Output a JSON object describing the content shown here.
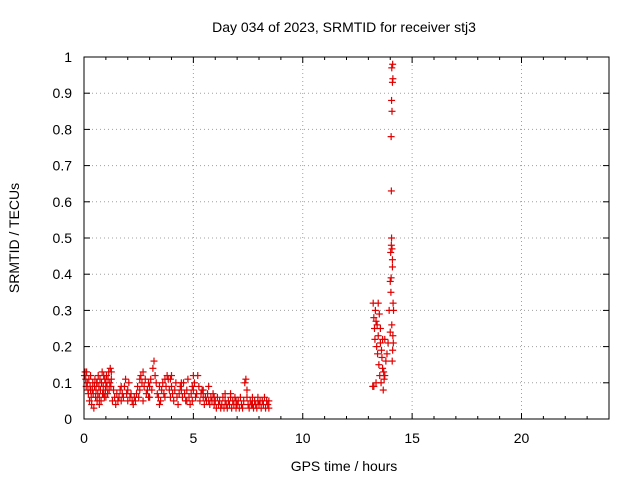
{
  "chart_data": {
    "type": "scatter",
    "title": "Day 034 of 2023, SRMTID for receiver stj3",
    "xlabel": "GPS time / hours",
    "ylabel": "SRMTID / TECUs",
    "xlim": [
      0,
      24
    ],
    "ylim": [
      0,
      1
    ],
    "xticks": [
      0,
      5,
      10,
      15,
      20
    ],
    "yticks": [
      0,
      0.1,
      0.2,
      0.3,
      0.4,
      0.5,
      0.6,
      0.7,
      0.8,
      0.9,
      1
    ],
    "grid": true,
    "marker": "+",
    "color": "#e00000",
    "series": [
      {
        "name": "SRMTID",
        "points": [
          [
            0.02,
            0.12
          ],
          [
            0.05,
            0.13
          ],
          [
            0.08,
            0.11
          ],
          [
            0.1,
            0.09
          ],
          [
            0.12,
            0.13
          ],
          [
            0.15,
            0.1
          ],
          [
            0.18,
            0.08
          ],
          [
            0.2,
            0.07
          ],
          [
            0.22,
            0.11
          ],
          [
            0.25,
            0.05
          ],
          [
            0.28,
            0.09
          ],
          [
            0.3,
            0.12
          ],
          [
            0.33,
            0.06
          ],
          [
            0.35,
            0.04
          ],
          [
            0.38,
            0.08
          ],
          [
            0.4,
            0.1
          ],
          [
            0.42,
            0.07
          ],
          [
            0.45,
            0.03
          ],
          [
            0.48,
            0.09
          ],
          [
            0.5,
            0.11
          ],
          [
            0.53,
            0.06
          ],
          [
            0.55,
            0.08
          ],
          [
            0.58,
            0.1
          ],
          [
            0.6,
            0.05
          ],
          [
            0.63,
            0.07
          ],
          [
            0.65,
            0.12
          ],
          [
            0.68,
            0.09
          ],
          [
            0.7,
            0.06
          ],
          [
            0.73,
            0.11
          ],
          [
            0.75,
            0.08
          ],
          [
            0.78,
            0.05
          ],
          [
            0.8,
            0.1
          ],
          [
            0.83,
            0.13
          ],
          [
            0.85,
            0.07
          ],
          [
            0.88,
            0.09
          ],
          [
            0.9,
            0.12
          ],
          [
            0.93,
            0.06
          ],
          [
            0.95,
            0.11
          ],
          [
            0.98,
            0.08
          ],
          [
            1.0,
            0.1
          ],
          [
            1.03,
            0.12
          ],
          [
            1.05,
            0.09
          ],
          [
            1.08,
            0.07
          ],
          [
            1.1,
            0.11
          ],
          [
            1.13,
            0.13
          ],
          [
            1.15,
            0.08
          ],
          [
            1.18,
            0.1
          ],
          [
            1.2,
            0.14
          ],
          [
            1.23,
            0.09
          ],
          [
            1.25,
            0.11
          ],
          [
            1.3,
            0.05
          ],
          [
            1.35,
            0.08
          ],
          [
            1.4,
            0.06
          ],
          [
            1.45,
            0.04
          ],
          [
            1.5,
            0.07
          ],
          [
            1.55,
            0.05
          ],
          [
            1.6,
            0.06
          ],
          [
            1.65,
            0.08
          ],
          [
            1.7,
            0.05
          ],
          [
            1.75,
            0.07
          ],
          [
            1.8,
            0.06
          ],
          [
            1.85,
            0.09
          ],
          [
            1.9,
            0.11
          ],
          [
            1.95,
            0.07
          ],
          [
            2.0,
            0.08
          ],
          [
            2.05,
            0.1
          ],
          [
            2.1,
            0.06
          ],
          [
            2.15,
            0.07
          ],
          [
            2.2,
            0.05
          ],
          [
            2.25,
            0.04
          ],
          [
            2.3,
            0.06
          ],
          [
            2.35,
            0.05
          ],
          [
            2.4,
            0.07
          ],
          [
            2.45,
            0.09
          ],
          [
            2.5,
            0.06
          ],
          [
            2.55,
            0.08
          ],
          [
            2.6,
            0.12
          ],
          [
            2.65,
            0.1
          ],
          [
            2.7,
            0.13
          ],
          [
            2.75,
            0.09
          ],
          [
            2.8,
            0.11
          ],
          [
            2.85,
            0.07
          ],
          [
            2.9,
            0.08
          ],
          [
            2.95,
            0.06
          ],
          [
            3.0,
            0.09
          ],
          [
            3.05,
            0.11
          ],
          [
            3.1,
            0.08
          ],
          [
            3.15,
            0.14
          ],
          [
            3.2,
            0.16
          ],
          [
            3.25,
            0.12
          ],
          [
            3.3,
            0.1
          ],
          [
            3.35,
            0.07
          ],
          [
            3.4,
            0.06
          ],
          [
            3.45,
            0.04
          ],
          [
            3.5,
            0.05
          ],
          [
            3.55,
            0.08
          ],
          [
            3.6,
            0.1
          ],
          [
            3.65,
            0.07
          ],
          [
            3.7,
            0.06
          ],
          [
            3.75,
            0.09
          ],
          [
            3.8,
            0.12
          ],
          [
            3.85,
            0.11
          ],
          [
            3.9,
            0.08
          ],
          [
            3.95,
            0.06
          ],
          [
            4.0,
            0.09
          ],
          [
            4.05,
            0.07
          ],
          [
            4.1,
            0.05
          ],
          [
            4.15,
            0.08
          ],
          [
            4.2,
            0.1
          ],
          [
            4.25,
            0.06
          ],
          [
            4.3,
            0.04
          ],
          [
            4.35,
            0.07
          ],
          [
            4.4,
            0.09
          ],
          [
            4.45,
            0.08
          ],
          [
            4.5,
            0.06
          ],
          [
            4.55,
            0.1
          ],
          [
            4.6,
            0.07
          ],
          [
            4.65,
            0.05
          ],
          [
            4.7,
            0.08
          ],
          [
            4.75,
            0.11
          ],
          [
            4.8,
            0.06
          ],
          [
            4.85,
            0.04
          ],
          [
            4.9,
            0.07
          ],
          [
            4.95,
            0.05
          ],
          [
            5.0,
            0.08
          ],
          [
            5.05,
            0.1
          ],
          [
            5.1,
            0.06
          ],
          [
            5.15,
            0.07
          ],
          [
            5.2,
            0.12
          ],
          [
            5.25,
            0.09
          ],
          [
            5.3,
            0.05
          ],
          [
            5.35,
            0.07
          ],
          [
            5.4,
            0.08
          ],
          [
            5.45,
            0.06
          ],
          [
            5.5,
            0.04
          ],
          [
            5.55,
            0.06
          ],
          [
            5.6,
            0.05
          ],
          [
            5.65,
            0.07
          ],
          [
            5.7,
            0.05
          ],
          [
            5.75,
            0.04
          ],
          [
            5.8,
            0.06
          ],
          [
            5.85,
            0.05
          ],
          [
            5.9,
            0.07
          ],
          [
            5.95,
            0.04
          ],
          [
            6.0,
            0.05
          ],
          [
            6.05,
            0.03
          ],
          [
            6.1,
            0.06
          ],
          [
            6.15,
            0.04
          ],
          [
            6.2,
            0.05
          ],
          [
            6.25,
            0.03
          ],
          [
            6.3,
            0.04
          ],
          [
            6.35,
            0.06
          ],
          [
            6.4,
            0.03
          ],
          [
            6.45,
            0.05
          ],
          [
            6.5,
            0.04
          ],
          [
            6.55,
            0.03
          ],
          [
            6.6,
            0.05
          ],
          [
            6.65,
            0.04
          ],
          [
            6.7,
            0.07
          ],
          [
            6.75,
            0.03
          ],
          [
            6.8,
            0.05
          ],
          [
            6.85,
            0.04
          ],
          [
            6.9,
            0.06
          ],
          [
            6.95,
            0.03
          ],
          [
            7.0,
            0.04
          ],
          [
            7.05,
            0.05
          ],
          [
            7.1,
            0.03
          ],
          [
            7.15,
            0.06
          ],
          [
            7.2,
            0.04
          ],
          [
            7.25,
            0.03
          ],
          [
            7.3,
            0.05
          ],
          [
            7.35,
            0.1
          ],
          [
            7.4,
            0.11
          ],
          [
            7.45,
            0.06
          ],
          [
            7.5,
            0.04
          ],
          [
            7.55,
            0.03
          ],
          [
            7.6,
            0.05
          ],
          [
            7.65,
            0.04
          ],
          [
            7.7,
            0.06
          ],
          [
            7.75,
            0.03
          ],
          [
            7.8,
            0.05
          ],
          [
            7.85,
            0.04
          ],
          [
            7.9,
            0.03
          ],
          [
            7.95,
            0.06
          ],
          [
            8.0,
            0.04
          ],
          [
            8.05,
            0.05
          ],
          [
            8.1,
            0.03
          ],
          [
            8.15,
            0.05
          ],
          [
            8.2,
            0.04
          ],
          [
            8.25,
            0.06
          ],
          [
            8.3,
            0.03
          ],
          [
            8.35,
            0.05
          ],
          [
            8.4,
            0.04
          ],
          [
            8.45,
            0.03
          ],
          [
            0.3,
            0.08
          ],
          [
            0.6,
            0.1
          ],
          [
            0.9,
            0.07
          ],
          [
            1.25,
            0.13
          ],
          [
            2.55,
            0.11
          ],
          [
            2.95,
            0.1
          ],
          [
            3.45,
            0.09
          ],
          [
            3.95,
            0.11
          ],
          [
            4.45,
            0.1
          ],
          [
            4.95,
            0.09
          ],
          [
            5.45,
            0.08
          ],
          [
            5.95,
            0.06
          ],
          [
            6.45,
            0.07
          ],
          [
            6.95,
            0.05
          ],
          [
            7.45,
            0.08
          ],
          [
            7.95,
            0.05
          ],
          [
            8.45,
            0.05
          ],
          [
            0.7,
            0.04
          ],
          [
            1.7,
            0.09
          ],
          [
            2.7,
            0.05
          ],
          [
            3.7,
            0.11
          ],
          [
            4.7,
            0.05
          ],
          [
            5.7,
            0.09
          ],
          [
            6.7,
            0.06
          ],
          [
            7.7,
            0.04
          ],
          [
            1.0,
            0.06
          ],
          [
            2.0,
            0.05
          ],
          [
            3.0,
            0.06
          ],
          [
            4.0,
            0.12
          ],
          [
            5.0,
            0.12
          ],
          [
            13.2,
            0.09
          ],
          [
            13.22,
            0.32
          ],
          [
            13.25,
            0.28
          ],
          [
            13.28,
            0.25
          ],
          [
            13.3,
            0.22
          ],
          [
            13.32,
            0.3
          ],
          [
            13.35,
            0.27
          ],
          [
            13.38,
            0.2
          ],
          [
            13.4,
            0.26
          ],
          [
            13.42,
            0.18
          ],
          [
            13.45,
            0.23
          ],
          [
            13.48,
            0.15
          ],
          [
            13.5,
            0.29
          ],
          [
            13.52,
            0.12
          ],
          [
            13.55,
            0.21
          ],
          [
            13.58,
            0.1
          ],
          [
            13.6,
            0.19
          ],
          [
            13.62,
            0.17
          ],
          [
            13.65,
            0.14
          ],
          [
            13.68,
            0.08
          ],
          [
            13.7,
            0.13
          ],
          [
            13.72,
            0.11
          ],
          [
            13.75,
            0.22
          ],
          [
            13.8,
            0.16
          ],
          [
            13.85,
            0.18
          ],
          [
            13.9,
            0.21
          ],
          [
            13.95,
            0.3
          ],
          [
            14.0,
            0.38
          ],
          [
            14.02,
            0.46
          ],
          [
            14.05,
            0.48
          ],
          [
            14.03,
            0.35
          ],
          [
            14.06,
            0.5
          ],
          [
            14.08,
            0.47
          ],
          [
            14.1,
            0.44
          ],
          [
            14.04,
            0.39
          ],
          [
            14.07,
            0.26
          ],
          [
            14.09,
            0.16
          ],
          [
            14.11,
            0.19
          ],
          [
            14.12,
            0.23
          ],
          [
            14.13,
            0.32
          ],
          [
            14.15,
            0.3
          ],
          [
            14.05,
            0.63
          ],
          [
            14.04,
            0.78
          ],
          [
            14.08,
            0.85
          ],
          [
            14.06,
            0.88
          ],
          [
            14.1,
            0.93
          ],
          [
            14.12,
            0.94
          ],
          [
            14.07,
            0.97
          ],
          [
            14.11,
            0.98
          ],
          [
            14.14,
            0.21
          ],
          [
            13.25,
            0.09
          ],
          [
            13.35,
            0.1
          ],
          [
            13.45,
            0.32
          ],
          [
            13.55,
            0.25
          ],
          [
            13.65,
            0.22
          ],
          [
            13.75,
            0.12
          ],
          [
            14.0,
            0.24
          ],
          [
            14.1,
            0.42
          ]
        ]
      }
    ]
  }
}
